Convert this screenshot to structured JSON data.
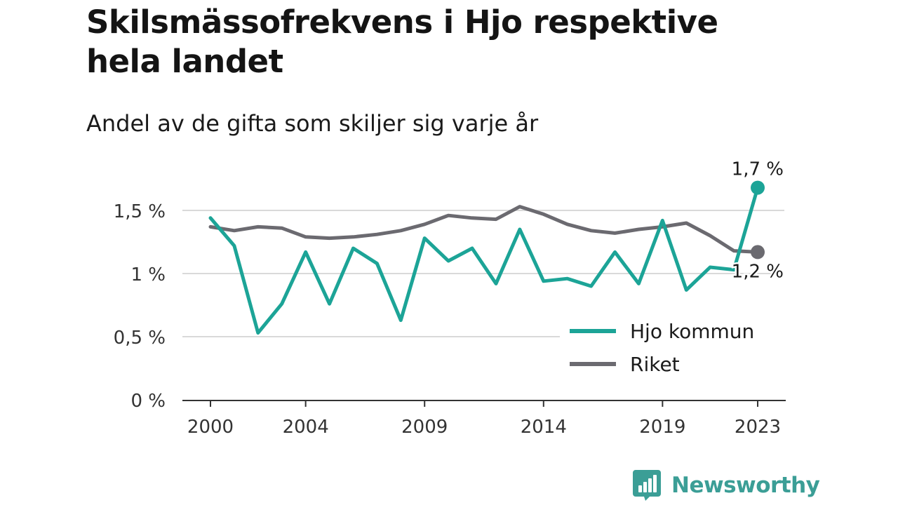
{
  "title": "Skilsmässofrekvens i Hjo respektive hela landet",
  "subtitle": "Andel av de gifta som skiljer sig varje år",
  "brand": {
    "name": "Newsworthy",
    "icon": "newsworthy-logo-icon"
  },
  "colors": {
    "hjo": "#1ca497",
    "riket": "#6b6a70",
    "grid": "#d9d9d9",
    "axis": "#333333",
    "brand": "#3b9e96"
  },
  "chart_data": {
    "type": "line",
    "x": [
      2000,
      2001,
      2002,
      2003,
      2004,
      2005,
      2006,
      2007,
      2008,
      2009,
      2010,
      2011,
      2012,
      2013,
      2014,
      2015,
      2016,
      2017,
      2018,
      2019,
      2020,
      2021,
      2022,
      2023
    ],
    "x_ticks": [
      {
        "value": 2000,
        "label": "2000"
      },
      {
        "value": 2004,
        "label": "2004"
      },
      {
        "value": 2009,
        "label": "2009"
      },
      {
        "value": 2014,
        "label": "2014"
      },
      {
        "value": 2019,
        "label": "2019"
      },
      {
        "value": 2023,
        "label": "2023"
      }
    ],
    "y_ticks": [
      {
        "value": 0,
        "label": "0 %"
      },
      {
        "value": 0.5,
        "label": "0,5 %"
      },
      {
        "value": 1,
        "label": "1 %"
      },
      {
        "value": 1.5,
        "label": "1,5 %"
      }
    ],
    "ylim": [
      0,
      1.5
    ],
    "grid": true,
    "legend_position": "bottom-right",
    "series": [
      {
        "name": "Hjo kommun",
        "color": "#1ca497",
        "values": [
          1.44,
          1.22,
          0.53,
          0.76,
          1.17,
          0.76,
          1.2,
          1.08,
          0.63,
          1.28,
          1.1,
          1.2,
          0.92,
          1.35,
          0.94,
          0.96,
          0.9,
          1.17,
          0.92,
          1.42,
          0.87,
          1.05,
          1.03,
          1.68
        ],
        "end_label": "1,7 %"
      },
      {
        "name": "Riket",
        "color": "#6b6a70",
        "values": [
          1.37,
          1.34,
          1.37,
          1.36,
          1.29,
          1.28,
          1.29,
          1.31,
          1.34,
          1.39,
          1.46,
          1.44,
          1.43,
          1.53,
          1.47,
          1.39,
          1.34,
          1.32,
          1.35,
          1.37,
          1.4,
          1.3,
          1.18,
          1.17
        ],
        "end_label": "1,2 %"
      }
    ]
  }
}
